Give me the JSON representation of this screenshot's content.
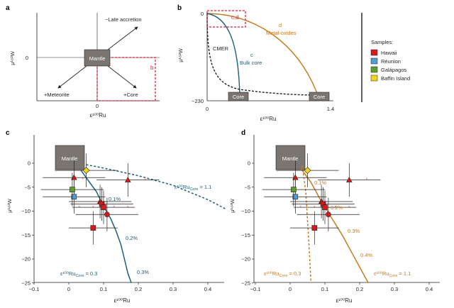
{
  "colors": {
    "hawaii": "#d7191c",
    "reunion": "#4f9fd6",
    "galapagos": "#5e9e2e",
    "baffin": "#f3d317",
    "bulk_core": "#1b5e7e",
    "metal_oxides": "#c57a1d",
    "box_red": "#d9223d",
    "mantle_box": "#7a7571"
  },
  "panel_a": {
    "label": "a",
    "y_axis_label": "μ¹⁸²W",
    "x_axis_label": "ε¹⁰⁰Ru",
    "y_zero": "0",
    "x_zero": "0",
    "mantle": "Mantle",
    "late_accretion": "−Late accretion",
    "meteorite": "+Meteorite",
    "core": "+Core",
    "box_b": "b"
  },
  "panel_b": {
    "label": "b",
    "y_axis_label": "μ¹⁸²W",
    "x_axis_label": "ε¹⁰⁰Ru",
    "y_top": "0",
    "y_bottom": "−230",
    "x_left": "0",
    "x_right": "1.4",
    "box_cd": "c,d",
    "cmer": "CMER",
    "bulk_core_letter": "c",
    "bulk_core": "Bulk core",
    "metal_ox_letter": "d",
    "metal_ox": "Metal-oxides",
    "core1": "Core",
    "core2": "Core"
  },
  "legend": {
    "title": "Samples:",
    "items": [
      "Hawaii",
      "Réunion",
      "Galápagos",
      "Baffin Island"
    ]
  },
  "panel_c": {
    "label": "c",
    "y_axis_label": "μ¹⁸²W",
    "x_axis_label": "ε¹⁰⁰Ru",
    "mantle": "Mantle",
    "x_ticks": [
      "−0.1",
      "0",
      "0.1",
      "0.2",
      "0.3",
      "0.4"
    ],
    "y_ticks": [
      "0",
      "−5",
      "−10",
      "−15",
      "−20",
      "−25"
    ],
    "pct_labels": [
      "0.1%",
      "0.2%",
      "0.3%"
    ],
    "curve_solid_label": "ε¹⁰⁰Ru",
    "curve_solid_sub": "Core",
    "curve_solid_value": " = 0.3",
    "curve_dashed_label": "ε¹⁰⁰Ru",
    "curve_dashed_sub": "Core",
    "curve_dashed_value": " = 1.1"
  },
  "panel_d": {
    "label": "d",
    "y_axis_label": "μ¹⁸²W",
    "x_axis_label": "ε¹⁰⁰Ru",
    "mantle": "Mantle",
    "x_ticks": [
      "−0.1",
      "0",
      "0.1",
      "0.2",
      "0.3",
      "0.4"
    ],
    "y_ticks": [
      "0",
      "−5",
      "−10",
      "−15",
      "−20",
      "−25"
    ],
    "pct_labels": [
      "0.1%",
      "0.2%",
      "0.3%",
      "0.4%"
    ],
    "curve_dashed_label": "ε¹⁰⁰Ru",
    "curve_dashed_sub": "Core",
    "curve_dashed_value": " = 0.3",
    "curve_solid_label": "ε¹⁰⁰Ru",
    "curve_solid_sub": "Core",
    "curve_solid_value": " = 1.1"
  },
  "chart_data": [
    {
      "panel": "c",
      "type": "scatter",
      "xlabel": "ε¹⁰⁰Ru",
      "ylabel": "μ¹⁸²W",
      "xlim": [
        -0.1,
        0.45
      ],
      "ylim": [
        -25,
        3
      ],
      "series": [
        {
          "name": "Hawaii",
          "points": [
            {
              "x": 0.015,
              "y": -3,
              "marker": "triangle"
            },
            {
              "x": 0.17,
              "y": -3.5,
              "marker": "triangle"
            },
            {
              "x": 0.09,
              "y": -8,
              "marker": "triangle"
            },
            {
              "x": 0.095,
              "y": -8.5,
              "marker": "square"
            },
            {
              "x": 0.1,
              "y": -9.2,
              "marker": "square"
            },
            {
              "x": 0.11,
              "y": -10.7,
              "marker": "circle"
            },
            {
              "x": 0.07,
              "y": -13.5,
              "marker": "square"
            }
          ]
        },
        {
          "name": "Réunion",
          "points": [
            {
              "x": 0.015,
              "y": -7,
              "marker": "square"
            }
          ]
        },
        {
          "name": "Galápagos",
          "points": [
            {
              "x": 0.01,
              "y": -5.5,
              "marker": "square"
            }
          ]
        },
        {
          "name": "Baffin Island",
          "points": [
            {
              "x": 0.05,
              "y": -1.5,
              "marker": "diamond"
            }
          ]
        }
      ],
      "mixing_curves": [
        {
          "core_eps100Ru": 0.3,
          "style": "solid",
          "points": [
            [
              0.035,
              -1.5
            ],
            [
              0.06,
              -4
            ],
            [
              0.08,
              -6
            ],
            [
              0.1,
              -9
            ],
            [
              0.12,
              -11.5
            ],
            [
              0.135,
              -14
            ],
            [
              0.15,
              -17
            ],
            [
              0.16,
              -20
            ],
            [
              0.17,
              -23
            ],
            [
              0.18,
              -25
            ]
          ]
        },
        {
          "core_eps100Ru": 1.1,
          "style": "dashed",
          "points": [
            [
              0.05,
              -0.3
            ],
            [
              0.1,
              -1
            ],
            [
              0.2,
              -2.6
            ],
            [
              0.3,
              -4.6
            ],
            [
              0.4,
              -7.6
            ],
            [
              0.45,
              -9.5
            ]
          ]
        }
      ]
    },
    {
      "panel": "d",
      "type": "scatter",
      "xlabel": "ε¹⁰⁰Ru",
      "ylabel": "μ¹⁸²W",
      "xlim": [
        -0.1,
        0.45
      ],
      "ylim": [
        -25,
        3
      ],
      "series": [
        {
          "name": "Hawaii",
          "points": [
            {
              "x": 0.015,
              "y": -3,
              "marker": "triangle"
            },
            {
              "x": 0.17,
              "y": -3.5,
              "marker": "triangle"
            },
            {
              "x": 0.09,
              "y": -8,
              "marker": "triangle"
            },
            {
              "x": 0.095,
              "y": -8.5,
              "marker": "square"
            },
            {
              "x": 0.1,
              "y": -9.2,
              "marker": "square"
            },
            {
              "x": 0.11,
              "y": -10.7,
              "marker": "circle"
            },
            {
              "x": 0.07,
              "y": -13.5,
              "marker": "square"
            }
          ]
        },
        {
          "name": "Réunion",
          "points": [
            {
              "x": 0.015,
              "y": -7,
              "marker": "square"
            }
          ]
        },
        {
          "name": "Galápagos",
          "points": [
            {
              "x": 0.01,
              "y": -5.5,
              "marker": "square"
            }
          ]
        },
        {
          "name": "Baffin Island",
          "points": [
            {
              "x": 0.05,
              "y": -1.5,
              "marker": "diamond"
            }
          ]
        }
      ],
      "mixing_curves": [
        {
          "core_eps100Ru": 0.3,
          "style": "dashed",
          "points": [
            [
              0.035,
              -0.5
            ],
            [
              0.045,
              -6
            ],
            [
              0.05,
              -12
            ],
            [
              0.055,
              -18
            ],
            [
              0.06,
              -25
            ]
          ]
        },
        {
          "core_eps100Ru": 1.1,
          "style": "solid",
          "points": [
            [
              0.03,
              -1
            ],
            [
              0.06,
              -4
            ],
            [
              0.09,
              -8
            ],
            [
              0.12,
              -11.5
            ],
            [
              0.15,
              -15
            ],
            [
              0.18,
              -19
            ],
            [
              0.21,
              -23
            ],
            [
              0.225,
              -25
            ]
          ]
        }
      ]
    }
  ]
}
